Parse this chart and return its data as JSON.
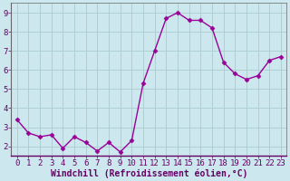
{
  "x": [
    0,
    1,
    2,
    3,
    4,
    5,
    6,
    7,
    8,
    9,
    10,
    11,
    12,
    13,
    14,
    15,
    16,
    17,
    18,
    19,
    20,
    21,
    22,
    23
  ],
  "y": [
    3.4,
    2.7,
    2.5,
    2.6,
    1.9,
    2.5,
    2.2,
    1.75,
    2.2,
    1.7,
    2.3,
    5.3,
    7.0,
    8.7,
    9.0,
    8.6,
    8.6,
    8.2,
    6.4,
    5.8,
    5.5,
    5.7,
    6.5,
    6.7
  ],
  "line_color": "#990099",
  "marker": "D",
  "marker_size": 2.5,
  "bg_color": "#cce8ee",
  "grid_color": "#aacccc",
  "xlabel": "Windchill (Refroidissement éolien,°C)",
  "ylim": [
    1.5,
    9.5
  ],
  "xlim": [
    -0.5,
    23.5
  ],
  "yticks": [
    2,
    3,
    4,
    5,
    6,
    7,
    8,
    9
  ],
  "xticks": [
    0,
    1,
    2,
    3,
    4,
    5,
    6,
    7,
    8,
    9,
    10,
    11,
    12,
    13,
    14,
    15,
    16,
    17,
    18,
    19,
    20,
    21,
    22,
    23
  ],
  "tick_fontsize": 6.5,
  "xlabel_fontsize": 7,
  "line_width": 1.0,
  "spine_color": "#666666",
  "axis_bottom_color": "#660066"
}
